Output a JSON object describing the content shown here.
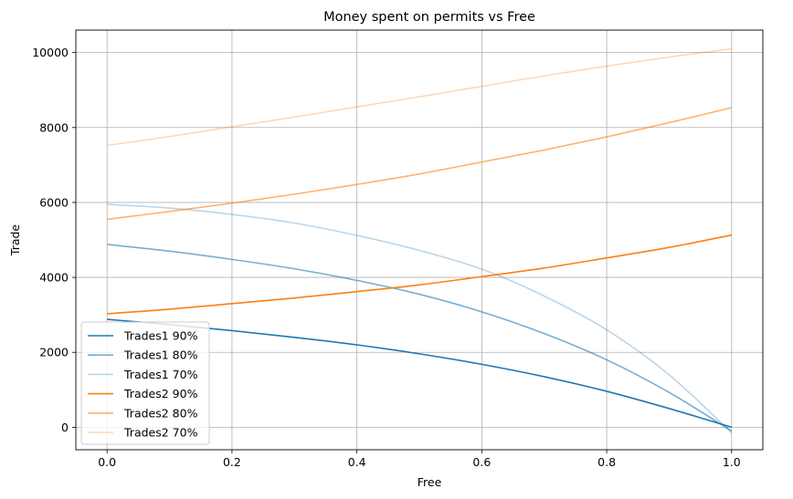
{
  "chart_data": {
    "type": "line",
    "title": "Money spent on permits vs Free",
    "xlabel": "Free",
    "ylabel": "Trade",
    "xlim": [
      -0.05,
      1.05
    ],
    "ylim": [
      -600,
      10600
    ],
    "xticks": [
      0.0,
      0.2,
      0.4,
      0.6,
      0.8,
      1.0
    ],
    "xtick_labels": [
      "0.0",
      "0.2",
      "0.4",
      "0.6",
      "0.8",
      "1.0"
    ],
    "yticks": [
      0,
      2000,
      4000,
      6000,
      8000,
      10000
    ],
    "ytick_labels": [
      "0",
      "2000",
      "4000",
      "6000",
      "8000",
      "10000"
    ],
    "grid": true,
    "legend_position": "lower-left",
    "x": [
      0.0,
      0.1,
      0.2,
      0.3,
      0.4,
      0.5,
      0.6,
      0.7,
      0.8,
      0.9,
      1.0
    ],
    "series": [
      {
        "name": "Trades1 90%",
        "color": "#1f77b4",
        "opacity": 1.0,
        "values": [
          2880,
          2740,
          2580,
          2400,
          2200,
          1960,
          1680,
          1350,
          960,
          500,
          0
        ]
      },
      {
        "name": "Trades1 80%",
        "color": "#1f77b4",
        "opacity": 0.6,
        "values": [
          4880,
          4700,
          4480,
          4230,
          3920,
          3550,
          3080,
          2500,
          1800,
          930,
          -100
        ]
      },
      {
        "name": "Trades1 70%",
        "color": "#1f77b4",
        "opacity": 0.3,
        "values": [
          5950,
          5850,
          5680,
          5450,
          5120,
          4720,
          4220,
          3500,
          2600,
          1400,
          -150
        ]
      },
      {
        "name": "Trades2 90%",
        "color": "#ff7f0e",
        "opacity": 1.0,
        "values": [
          3030,
          3150,
          3300,
          3450,
          3620,
          3800,
          4020,
          4250,
          4520,
          4800,
          5130
        ]
      },
      {
        "name": "Trades2 80%",
        "color": "#ff7f0e",
        "opacity": 0.6,
        "values": [
          5550,
          5760,
          5980,
          6220,
          6480,
          6760,
          7080,
          7400,
          7750,
          8130,
          8530
        ]
      },
      {
        "name": "Trades2 70%",
        "color": "#ff7f0e",
        "opacity": 0.3,
        "values": [
          7520,
          7760,
          8020,
          8280,
          8550,
          8820,
          9100,
          9380,
          9640,
          9880,
          10100
        ]
      }
    ]
  }
}
